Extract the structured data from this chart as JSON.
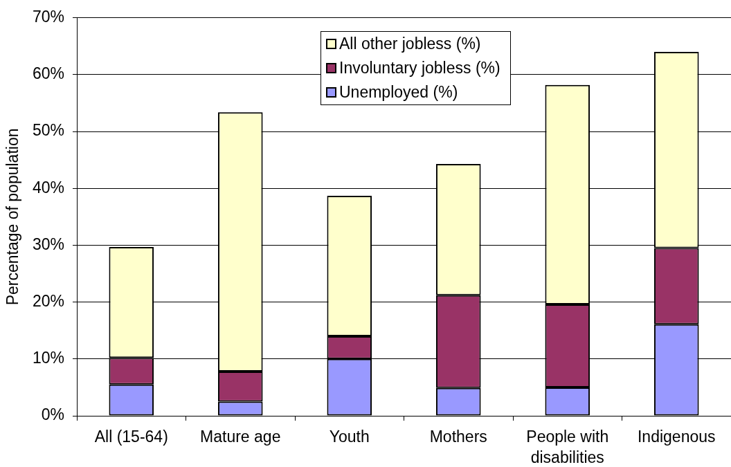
{
  "chart_data": {
    "type": "bar",
    "stacked": true,
    "categories": [
      "All (15-64)",
      "Mature age",
      "Youth",
      "Mothers",
      "People with disabilities",
      "Indigenous"
    ],
    "series": [
      {
        "name": "Unemployed (%)",
        "color": "#9999ff",
        "values": [
          5.5,
          2.5,
          10.0,
          4.9,
          5.0,
          16.1
        ]
      },
      {
        "name": "Involuntary jobless (%)",
        "color": "#993366",
        "values": [
          4.7,
          5.3,
          4.0,
          16.3,
          14.6,
          13.4
        ]
      },
      {
        "name": "All other jobless (%)",
        "color": "#ffffcc",
        "values": [
          19.5,
          45.6,
          24.7,
          23.1,
          38.6,
          34.5
        ]
      }
    ],
    "ylabel": "Percentage of population",
    "ylim": [
      0,
      70
    ],
    "yticks": [
      {
        "value": 0,
        "label": "0%"
      },
      {
        "value": 10,
        "label": "10%"
      },
      {
        "value": 20,
        "label": "20%"
      },
      {
        "value": 30,
        "label": "30%"
      },
      {
        "value": 40,
        "label": "40%"
      },
      {
        "value": 50,
        "label": "50%"
      },
      {
        "value": 60,
        "label": "60%"
      },
      {
        "value": 70,
        "label": "70%"
      }
    ],
    "grid": "y",
    "legend": "top"
  }
}
